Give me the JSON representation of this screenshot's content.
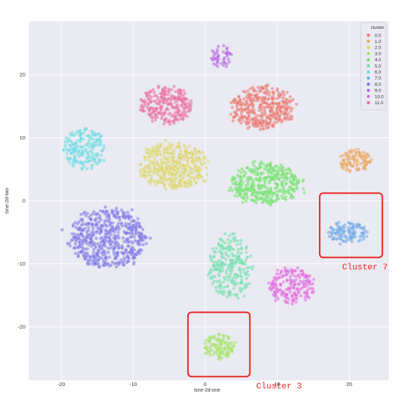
{
  "chart_data": {
    "type": "scatter",
    "title": "",
    "xlabel": "tsne-2d-one",
    "ylabel": "tsne-2d-two",
    "xlim": [
      -24.5,
      25.5
    ],
    "ylim": [
      -28.5,
      28.5
    ],
    "xticks": [
      -20,
      -10,
      0,
      10,
      20
    ],
    "yticks": [
      -20,
      -10,
      0,
      10,
      20
    ],
    "grid": true,
    "legend": {
      "title": "cluster",
      "placement": "top-right",
      "entries": [
        {
          "label": "0.0",
          "color": "#e8736c"
        },
        {
          "label": "1.0",
          "color": "#e8a35d"
        },
        {
          "label": "2.0",
          "color": "#dbd46a"
        },
        {
          "label": "3.0",
          "color": "#a3e065"
        },
        {
          "label": "4.0",
          "color": "#6fe06a"
        },
        {
          "label": "5.0",
          "color": "#6adca7"
        },
        {
          "label": "6.0",
          "color": "#6ad8e0"
        },
        {
          "label": "7.0",
          "color": "#6ea6e6"
        },
        {
          "label": "8.0",
          "color": "#7a72e4"
        },
        {
          "label": "9.0",
          "color": "#b262e0"
        },
        {
          "label": "10.0",
          "color": "#de66dc"
        },
        {
          "label": "11.0",
          "color": "#e8699e"
        }
      ]
    },
    "clusters": [
      {
        "name": "0.0",
        "color": "#e8736c",
        "center": [
          8.0,
          14.8
        ],
        "spread": [
          4.6,
          3.6
        ],
        "points": 380
      },
      {
        "name": "1.0",
        "color": "#e8a35d",
        "center": [
          20.8,
          6.5
        ],
        "spread": [
          2.4,
          2.0
        ],
        "points": 110
      },
      {
        "name": "2.0",
        "color": "#dbd46a",
        "center": [
          -4.5,
          5.5
        ],
        "spread": [
          5.2,
          3.9
        ],
        "points": 430
      },
      {
        "name": "3.0",
        "color": "#a3e065",
        "center": [
          2.0,
          -23.2
        ],
        "spread": [
          2.4,
          2.1
        ],
        "points": 120
      },
      {
        "name": "4.0",
        "color": "#6fe06a",
        "center": [
          8.5,
          2.7
        ],
        "spread": [
          5.2,
          3.6
        ],
        "points": 400
      },
      {
        "name": "5.0",
        "color": "#6adca7",
        "center": [
          3.5,
          -10.5
        ],
        "spread": [
          3.3,
          5.5
        ],
        "points": 240
      },
      {
        "name": "6.0",
        "color": "#6ad8e0",
        "center": [
          -16.8,
          8.3
        ],
        "spread": [
          3.1,
          3.6
        ],
        "points": 200
      },
      {
        "name": "7.0",
        "color": "#6ea6e6",
        "center": [
          19.8,
          -5.0
        ],
        "spread": [
          3.0,
          1.8
        ],
        "points": 130
      },
      {
        "name": "8.0",
        "color": "#7a72e4",
        "center": [
          -13.5,
          -6.0
        ],
        "spread": [
          5.8,
          5.0
        ],
        "points": 560
      },
      {
        "name": "9.0",
        "color": "#b262e0",
        "center": [
          2.2,
          22.8
        ],
        "spread": [
          1.6,
          1.7
        ],
        "points": 50
      },
      {
        "name": "10.0",
        "color": "#de66dc",
        "center": [
          12.0,
          -13.5
        ],
        "spread": [
          3.4,
          3.0
        ],
        "points": 200
      },
      {
        "name": "11.0",
        "color": "#e8699e",
        "center": [
          -5.5,
          15.2
        ],
        "spread": [
          3.9,
          3.2
        ],
        "points": 270
      }
    ],
    "annotations": [
      {
        "label": "Cluster 7",
        "box": {
          "x": [
            15.9,
            24.6
          ],
          "y": [
            -9.0,
            1.2
          ]
        }
      },
      {
        "label": "Cluster 3",
        "box": {
          "x": [
            -2.4,
            6.2
          ],
          "y": [
            -27.9,
            -17.7
          ]
        }
      }
    ]
  }
}
